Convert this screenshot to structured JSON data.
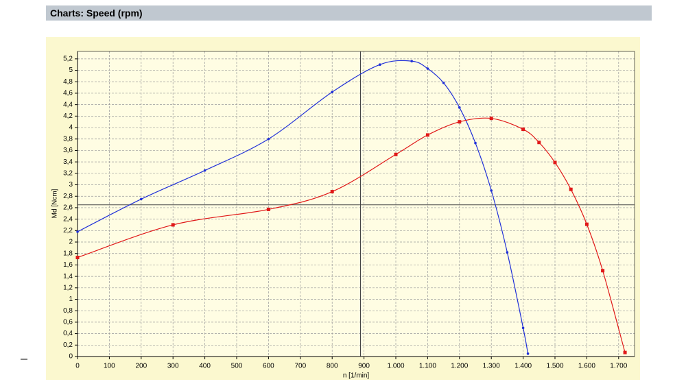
{
  "header": {
    "title": "Charts: Speed (rpm)"
  },
  "chart_data": {
    "type": "line",
    "xlabel": "n [1/min]",
    "ylabel": "Md [Ncm]",
    "xlim": [
      0,
      1750
    ],
    "ylim": [
      0,
      5.33
    ],
    "xticks": [
      0,
      100,
      200,
      300,
      400,
      500,
      600,
      700,
      800,
      900,
      {
        "value": 1000,
        "label": "1.000"
      },
      {
        "value": 1100,
        "label": "1.100"
      },
      {
        "value": 1200,
        "label": "1.200"
      },
      {
        "value": 1300,
        "label": "1.300"
      },
      {
        "value": 1400,
        "label": "1.400"
      },
      {
        "value": 1500,
        "label": "1.500"
      },
      {
        "value": 1600,
        "label": "1.600"
      },
      {
        "value": 1700,
        "label": "1.700"
      }
    ],
    "yticks": [
      0,
      {
        "value": 0.2,
        "label": "0,2"
      },
      {
        "value": 0.4,
        "label": "0,4"
      },
      {
        "value": 0.6,
        "label": "0,6"
      },
      {
        "value": 0.8,
        "label": "0,8"
      },
      1,
      {
        "value": 1.2,
        "label": "1,2"
      },
      {
        "value": 1.4,
        "label": "1,4"
      },
      {
        "value": 1.6,
        "label": "1,6"
      },
      {
        "value": 1.8,
        "label": "1,8"
      },
      2,
      {
        "value": 2.2,
        "label": "2,2"
      },
      {
        "value": 2.4,
        "label": "2,4"
      },
      {
        "value": 2.6,
        "label": "2,6"
      },
      {
        "value": 2.8,
        "label": "2,8"
      },
      3,
      {
        "value": 3.2,
        "label": "3,2"
      },
      {
        "value": 3.4,
        "label": "3,4"
      },
      {
        "value": 3.6,
        "label": "3,6"
      },
      {
        "value": 3.8,
        "label": "3,8"
      },
      4,
      {
        "value": 4.2,
        "label": "4,2"
      },
      {
        "value": 4.4,
        "label": "4,4"
      },
      {
        "value": 4.6,
        "label": "4,6"
      },
      {
        "value": 4.8,
        "label": "4,8"
      },
      5,
      {
        "value": 5.2,
        "label": "5,2"
      }
    ],
    "grid": true,
    "crosshair": {
      "x": 889,
      "y": 2.65
    },
    "series": [
      {
        "color": "#1f2fd8",
        "marker": "dot",
        "x": [
          0,
          200,
          400,
          600,
          800,
          950,
          1050,
          1100,
          1150,
          1200,
          1250,
          1300,
          1350,
          1400,
          1415
        ],
        "values": [
          2.18,
          2.75,
          3.25,
          3.8,
          4.62,
          5.1,
          5.16,
          5.03,
          4.78,
          4.35,
          3.73,
          2.9,
          1.82,
          0.5,
          0.05
        ]
      },
      {
        "color": "#e01818",
        "marker": "square",
        "x": [
          0,
          300,
          600,
          800,
          1000,
          1100,
          1200,
          1300,
          1400,
          1450,
          1500,
          1550,
          1600,
          1650,
          1720
        ],
        "values": [
          1.73,
          2.3,
          2.57,
          2.88,
          3.53,
          3.87,
          4.1,
          4.16,
          3.97,
          3.74,
          3.39,
          2.92,
          2.31,
          1.5,
          0.07
        ]
      }
    ]
  }
}
